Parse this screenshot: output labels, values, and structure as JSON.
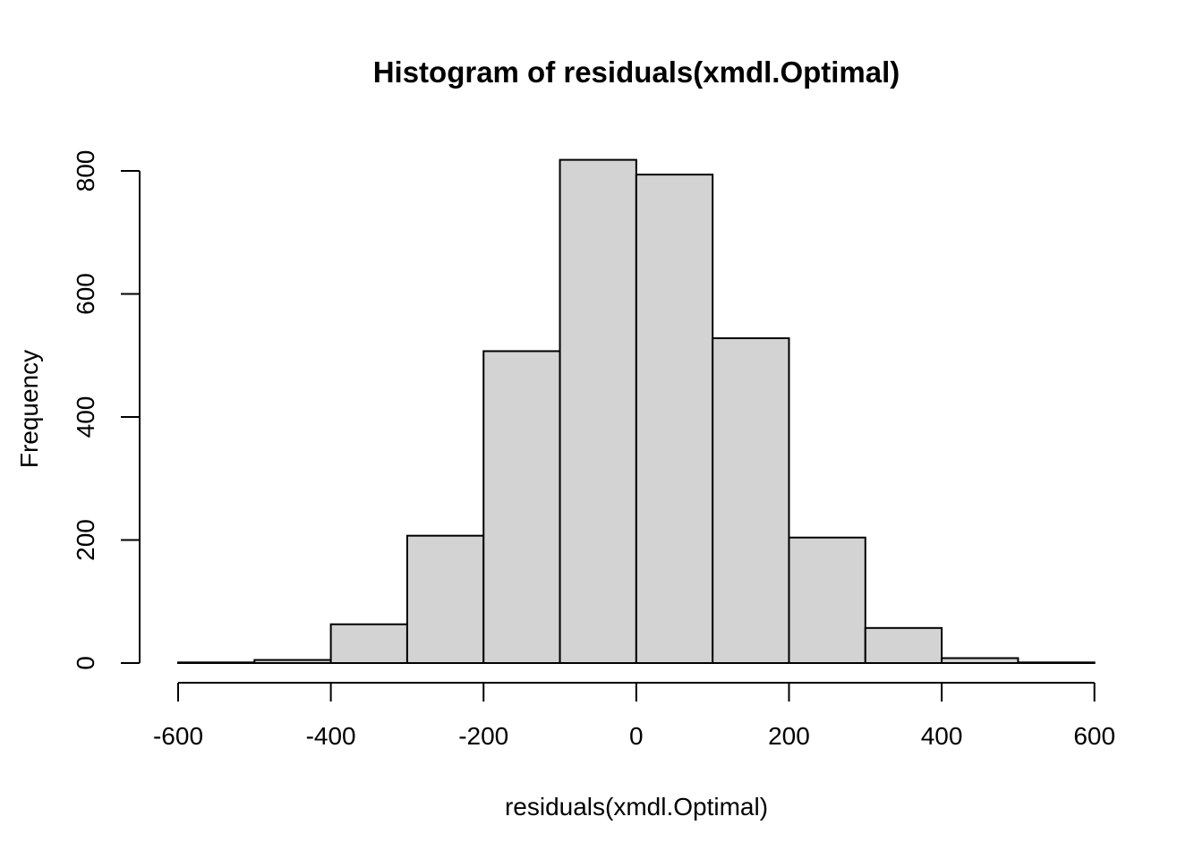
{
  "chart_data": {
    "type": "bar",
    "variant": "histogram",
    "title": "Histogram of residuals(xmdl.Optimal)",
    "xlabel": "residuals(xmdl.Optimal)",
    "ylabel": "Frequency",
    "bin_width": 100,
    "bin_edges": [
      -600,
      -500,
      -400,
      -300,
      -200,
      -100,
      0,
      100,
      200,
      300,
      400,
      500,
      600
    ],
    "counts": [
      1,
      5,
      63,
      207,
      507,
      818,
      794,
      528,
      204,
      57,
      8,
      1
    ],
    "x_ticks": [
      -600,
      -400,
      -200,
      0,
      200,
      400,
      600
    ],
    "y_ticks": [
      0,
      200,
      400,
      600,
      800
    ],
    "xlim": [
      -600,
      600
    ],
    "ylim": [
      0,
      820
    ],
    "grid": false,
    "legend": "none",
    "colors": {
      "bar_fill": "#d3d3d3",
      "bar_stroke": "#000000",
      "axis": "#000000",
      "text": "#000000",
      "background": "#ffffff"
    }
  }
}
